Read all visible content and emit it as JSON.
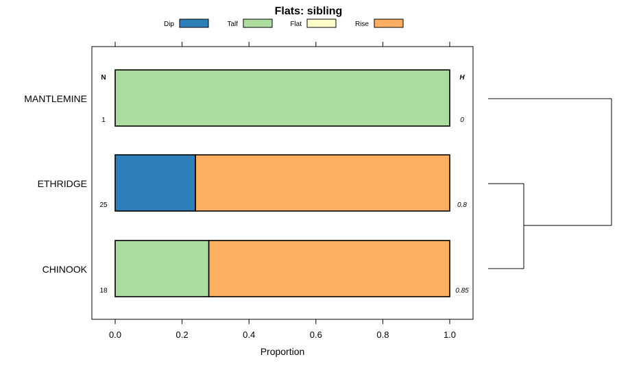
{
  "chart_data": {
    "type": "bar",
    "title": "Flats: sibling",
    "xlabel": "Proportion",
    "ylabel": "",
    "xlim": [
      -0.07,
      1.07
    ],
    "xticks": [
      "0.0",
      "0.2",
      "0.4",
      "0.6",
      "0.8",
      "1.0"
    ],
    "legend": [
      {
        "name": "Dip",
        "color": "#2c7fb8"
      },
      {
        "name": "Talf",
        "color": "#addd9e"
      },
      {
        "name": "Flat",
        "color": "#ffffcc"
      },
      {
        "name": "Rise",
        "color": "#fdae61"
      }
    ],
    "column_headers": {
      "n": "N",
      "h": "H"
    },
    "categories": [
      "MANTLEMINE",
      "ETHRIDGE",
      "CHINOOK"
    ],
    "n": [
      "1",
      "25",
      "18"
    ],
    "h": [
      "0",
      "0.8",
      "0.85"
    ],
    "series": [
      {
        "name": "Dip",
        "values": [
          0,
          0.24,
          0
        ]
      },
      {
        "name": "Talf",
        "values": [
          1.0,
          0,
          0.28
        ]
      },
      {
        "name": "Flat",
        "values": [
          0,
          0,
          0
        ]
      },
      {
        "name": "Rise",
        "values": [
          0,
          0.76,
          0.72
        ]
      }
    ]
  }
}
